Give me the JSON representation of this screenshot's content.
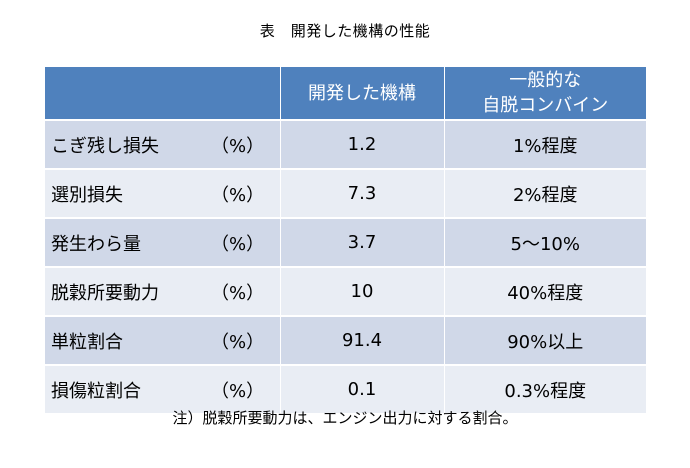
{
  "title": "表　開発した機構の性能",
  "table": {
    "header": {
      "developed": "開発した機構",
      "general_line1": "一般的な",
      "general_line2": "自脱コンバイン"
    },
    "rows": [
      {
        "item": "こぎ残し損失",
        "unit": "（%）",
        "developed": "1.2",
        "general": "1%程度"
      },
      {
        "item": "選別損失",
        "unit": "（%）",
        "developed": "7.3",
        "general": "2%程度"
      },
      {
        "item": "発生わら量",
        "unit": "（%）",
        "developed": "3.7",
        "general": "5～10%"
      },
      {
        "item": "脱穀所要動力",
        "unit": "（%）",
        "developed": "10",
        "general": "40%程度"
      },
      {
        "item": "単粒割合",
        "unit": "（%）",
        "developed": "91.4",
        "general": "90%以上"
      },
      {
        "item": "損傷粒割合",
        "unit": "（%）",
        "developed": "0.1",
        "general": "0.3%程度"
      }
    ]
  },
  "note": "注）脱穀所要動力は、エンジン出力に対する割合。"
}
